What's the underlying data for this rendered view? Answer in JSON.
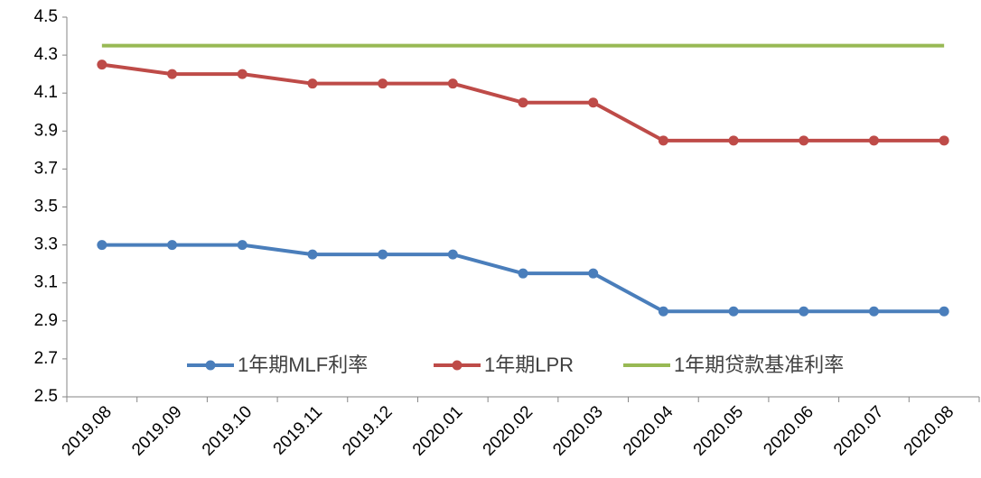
{
  "chart_data": {
    "type": "line",
    "categories": [
      "2019.08",
      "2019.09",
      "2019.10",
      "2019.11",
      "2019.12",
      "2020.01",
      "2020.02",
      "2020.03",
      "2020.04",
      "2020.05",
      "2020.06",
      "2020.07",
      "2020.08"
    ],
    "series": [
      {
        "name": "1年期MLF利率",
        "color": "#4a7ebb",
        "marker": true,
        "values": [
          3.3,
          3.3,
          3.3,
          3.25,
          3.25,
          3.25,
          3.15,
          3.15,
          2.95,
          2.95,
          2.95,
          2.95,
          2.95
        ]
      },
      {
        "name": "1年期LPR",
        "color": "#be4b48",
        "marker": true,
        "values": [
          4.25,
          4.2,
          4.2,
          4.15,
          4.15,
          4.15,
          4.05,
          4.05,
          3.85,
          3.85,
          3.85,
          3.85,
          3.85
        ]
      },
      {
        "name": "1年期贷款基准利率",
        "color": "#98b954",
        "marker": false,
        "values": [
          4.35,
          4.35,
          4.35,
          4.35,
          4.35,
          4.35,
          4.35,
          4.35,
          4.35,
          4.35,
          4.35,
          4.35,
          4.35
        ]
      }
    ],
    "ylim": [
      2.5,
      4.5
    ],
    "yticks": [
      2.5,
      2.7,
      2.9,
      3.1,
      3.3,
      3.5,
      3.7,
      3.9,
      4.1,
      4.3,
      4.5
    ],
    "grid": false,
    "legend": "bottom"
  }
}
